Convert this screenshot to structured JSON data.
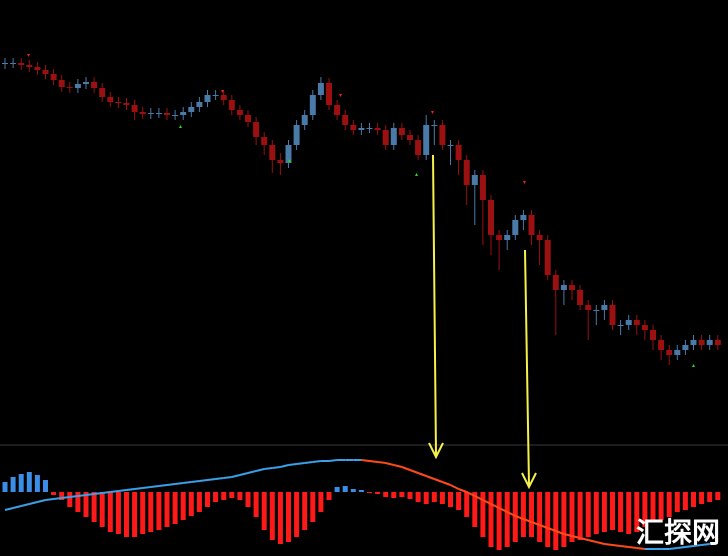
{
  "chart_data": [
    {
      "type": "candlestick",
      "open": [
        381,
        382,
        382,
        380,
        378,
        375,
        371,
        365,
        358,
        357,
        361,
        363,
        357,
        348,
        343,
        342,
        340,
        333,
        331,
        332,
        332,
        330,
        330,
        333,
        338,
        343,
        350,
        350,
        345,
        335,
        330,
        323,
        308,
        300,
        285,
        282,
        300,
        320,
        330,
        350,
        362,
        340,
        330,
        320,
        315,
        317,
        317,
        315,
        300,
        317,
        310,
        305,
        290,
        320,
        320,
        300,
        300,
        285,
        260,
        270,
        245,
        210,
        205,
        210,
        225,
        230,
        210,
        205,
        170,
        155,
        160,
        155,
        140,
        135,
        135,
        140,
        120,
        120,
        125,
        120,
        115,
        105,
        95,
        90,
        95,
        100,
        105,
        100,
        105
      ],
      "close": [
        382,
        382,
        380,
        378,
        375,
        371,
        365,
        358,
        357,
        361,
        363,
        357,
        348,
        343,
        342,
        340,
        333,
        331,
        332,
        332,
        330,
        330,
        333,
        338,
        343,
        350,
        350,
        345,
        335,
        330,
        323,
        308,
        300,
        285,
        282,
        300,
        320,
        330,
        350,
        362,
        340,
        330,
        320,
        315,
        317,
        317,
        315,
        300,
        317,
        310,
        305,
        290,
        320,
        320,
        300,
        300,
        285,
        260,
        270,
        245,
        210,
        205,
        210,
        225,
        230,
        210,
        205,
        170,
        155,
        160,
        155,
        140,
        135,
        135,
        140,
        120,
        120,
        125,
        120,
        115,
        105,
        95,
        90,
        95,
        100,
        105,
        100,
        105,
        100
      ],
      "high": [
        387,
        387,
        387,
        385,
        383,
        380,
        376,
        370,
        363,
        366,
        368,
        368,
        362,
        353,
        348,
        347,
        345,
        338,
        337,
        337,
        337,
        335,
        338,
        343,
        348,
        355,
        355,
        355,
        350,
        340,
        335,
        328,
        313,
        305,
        292,
        305,
        325,
        335,
        355,
        368,
        367,
        345,
        335,
        325,
        322,
        322,
        322,
        320,
        322,
        322,
        315,
        310,
        330,
        325,
        325,
        305,
        305,
        290,
        275,
        275,
        250,
        215,
        215,
        230,
        235,
        235,
        215,
        210,
        175,
        165,
        165,
        160,
        145,
        140,
        145,
        145,
        125,
        130,
        130,
        125,
        120,
        110,
        100,
        100,
        105,
        110,
        110,
        110,
        110
      ],
      "low": [
        376,
        377,
        375,
        373,
        370,
        366,
        360,
        353,
        352,
        352,
        356,
        352,
        343,
        338,
        337,
        335,
        325,
        326,
        326,
        327,
        325,
        325,
        325,
        328,
        333,
        338,
        345,
        340,
        330,
        325,
        318,
        300,
        290,
        272,
        270,
        277,
        295,
        315,
        325,
        345,
        335,
        325,
        315,
        310,
        310,
        312,
        310,
        295,
        295,
        305,
        300,
        285,
        285,
        300,
        295,
        280,
        270,
        240,
        220,
        200,
        190,
        175,
        195,
        205,
        215,
        200,
        180,
        165,
        110,
        140,
        145,
        135,
        105,
        120,
        125,
        115,
        110,
        115,
        110,
        105,
        95,
        85,
        80,
        85,
        90,
        95,
        95,
        95,
        95
      ],
      "ylim": [
        0,
        445
      ],
      "up_color": "#4a7aa8",
      "down_color": "#9b1010"
    },
    {
      "type": "macd",
      "histogram": [
        10,
        15,
        18,
        20,
        17,
        12,
        -3,
        -8,
        -15,
        -20,
        -25,
        -30,
        -35,
        -40,
        -42,
        -45,
        -45,
        -42,
        -40,
        -38,
        -35,
        -32,
        -28,
        -24,
        -20,
        -15,
        -10,
        -8,
        -6,
        -8,
        -15,
        -25,
        -38,
        -48,
        -52,
        -50,
        -45,
        -38,
        -30,
        -20,
        -8,
        5,
        6,
        3,
        2,
        -1,
        -2,
        -5,
        -6,
        -5,
        -7,
        -10,
        -12,
        -10,
        -12,
        -15,
        -18,
        -25,
        -35,
        -45,
        -55,
        -58,
        -55,
        -50,
        -45,
        -45,
        -50,
        -55,
        -58,
        -55,
        -50,
        -48,
        -45,
        -42,
        -40,
        -38,
        -40,
        -42,
        -40,
        -35,
        -30,
        -28,
        -25,
        -20,
        -18,
        -15,
        -12,
        -10,
        -8
      ],
      "signal": [
        -18,
        -16,
        -14,
        -12,
        -10,
        -8,
        -7,
        -6,
        -5,
        -4,
        -3,
        -2,
        -1,
        0,
        1,
        2,
        3,
        4,
        5,
        6,
        7,
        8,
        9,
        10,
        11,
        12,
        13,
        14,
        15,
        17,
        19,
        21,
        23,
        24,
        25,
        27,
        28,
        29,
        30,
        31,
        31,
        32,
        32,
        32,
        32,
        31,
        30,
        29,
        27,
        25,
        22,
        19,
        16,
        13,
        10,
        7,
        3,
        0,
        -4,
        -8,
        -12,
        -16,
        -20,
        -24,
        -27,
        -30,
        -33,
        -36,
        -39,
        -42,
        -44,
        -46,
        -48,
        -50,
        -52,
        -53,
        -54,
        -55,
        -56,
        -57,
        -57,
        -57,
        -57,
        -56,
        -55,
        -54,
        -53,
        -52,
        -51
      ],
      "ylim": [
        -60,
        47
      ],
      "up_color": "#3a8ee6",
      "down_color": "#ff1a1a",
      "signal_up_color": "#3aa0e8",
      "signal_down_color": "#ff4a1a"
    }
  ],
  "watermark": "汇探网"
}
